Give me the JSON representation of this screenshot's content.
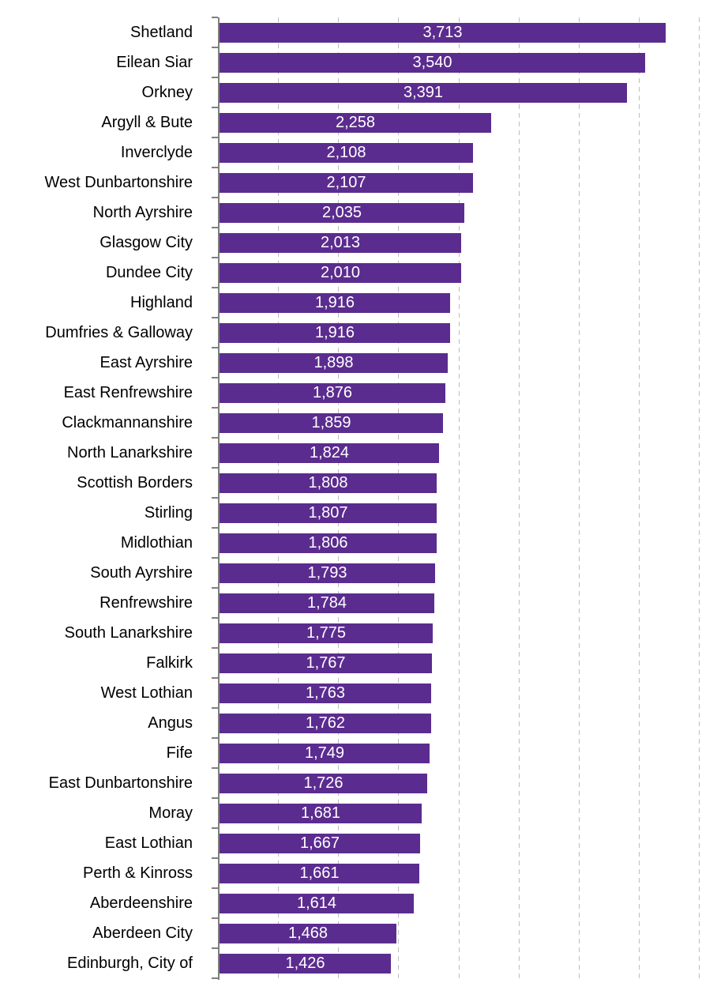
{
  "chart_data": {
    "type": "bar",
    "orientation": "horizontal",
    "title": "",
    "xlabel": "",
    "ylabel": "",
    "categories": [
      "Shetland",
      "Eilean Siar",
      "Orkney",
      "Argyll & Bute",
      "Inverclyde",
      "West Dunbartonshire",
      "North Ayrshire",
      "Glasgow City",
      "Dundee City",
      "Highland",
      "Dumfries & Galloway",
      "East Ayrshire",
      "East Renfrewshire",
      "Clackmannanshire",
      "North Lanarkshire",
      "Scottish Borders",
      "Stirling",
      "Midlothian",
      "South Ayrshire",
      "Renfrewshire",
      "South Lanarkshire",
      "Falkirk",
      "West Lothian",
      "Angus",
      "Fife",
      "East Dunbartonshire",
      "Moray",
      "East Lothian",
      "Perth & Kinross",
      "Aberdeenshire",
      "Aberdeen City",
      "Edinburgh, City of"
    ],
    "values": [
      3713,
      3540,
      3391,
      2258,
      2108,
      2107,
      2035,
      2013,
      2010,
      1916,
      1916,
      1898,
      1876,
      1859,
      1824,
      1808,
      1807,
      1806,
      1793,
      1784,
      1775,
      1767,
      1763,
      1762,
      1749,
      1726,
      1681,
      1667,
      1661,
      1614,
      1468,
      1426
    ],
    "value_labels": [
      "3,713",
      "3,540",
      "3,391",
      "2,258",
      "2,108",
      "2,107",
      "2,035",
      "2,013",
      "2,010",
      "1,916",
      "1,916",
      "1,898",
      "1,876",
      "1,859",
      "1,824",
      "1,808",
      "1,807",
      "1,806",
      "1,793",
      "1,784",
      "1,775",
      "1,767",
      "1,763",
      "1,762",
      "1,749",
      "1,726",
      "1,681",
      "1,667",
      "1,661",
      "1,614",
      "1,468",
      "1,426"
    ],
    "xlim": [
      0,
      4000
    ],
    "gridline_interval": 500,
    "grid": true,
    "legend": "none",
    "value_label_position": "inside-center",
    "colors": {
      "bar": "#5B2C8F",
      "value_label": "#FFFFFF",
      "category_label": "#000000",
      "axis": "#7F7F7F",
      "gridline": "#BDBDBD",
      "background": "#FFFFFF"
    }
  }
}
